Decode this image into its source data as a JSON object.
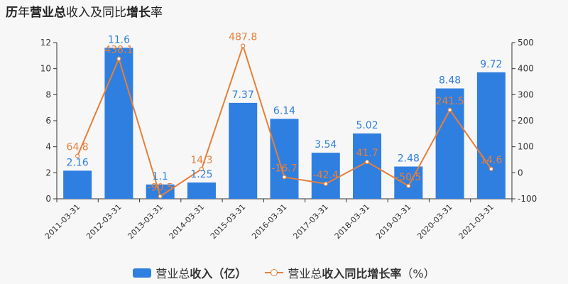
{
  "title": {
    "parts": [
      {
        "text": "历",
        "bold": true
      },
      {
        "text": "年",
        "bold": false
      },
      {
        "text": "营业总",
        "bold": true
      },
      {
        "text": "收入及同比",
        "bold": false
      },
      {
        "text": "增长",
        "bold": true
      },
      {
        "text": "率",
        "bold": false
      }
    ]
  },
  "chart_data": {
    "type": "bar+line",
    "categories": [
      "2011-03-31",
      "2012-03-31",
      "2013-03-31",
      "2014-03-31",
      "2015-03-31",
      "2016-03-31",
      "2017-03-31",
      "2018-03-31",
      "2019-03-31",
      "2020-03-31",
      "2021-03-31"
    ],
    "series": [
      {
        "name": "营业总收入（亿）",
        "type": "bar",
        "axis": "left",
        "color": "#2f7fe0",
        "label_color": "#2f7fe0",
        "values": [
          2.16,
          11.6,
          1.1,
          1.25,
          7.37,
          6.14,
          3.54,
          5.02,
          2.48,
          8.48,
          9.72
        ],
        "labels": [
          "2.16",
          "11.6",
          "1.1",
          "1.25",
          "7.37",
          "6.14",
          "3.54",
          "5.02",
          "2.48",
          "8.48",
          "9.72"
        ]
      },
      {
        "name": "营业总收入同比增长率（%）",
        "type": "line",
        "axis": "right",
        "color": "#e77f39",
        "label_color": "#e77f39",
        "values": [
          64.8,
          438.1,
          -90.5,
          14.3,
          487.8,
          -16.7,
          -42.4,
          41.7,
          -50.5,
          241.5,
          14.6
        ],
        "labels": [
          "64.8",
          "438.1",
          "-90.5",
          "14.3",
          "487.8",
          "-16.7",
          "-42.4",
          "41.7",
          "-50.5",
          "241.5",
          "14.6"
        ]
      }
    ],
    "y_left": {
      "min": 0,
      "max": 12,
      "ticks": [
        "0",
        "2",
        "4",
        "6",
        "8",
        "10",
        "12"
      ]
    },
    "y_right": {
      "min": -100,
      "max": 500,
      "ticks": [
        "-100",
        "0",
        "100",
        "200",
        "300",
        "400",
        "500"
      ]
    },
    "grid": false,
    "legend_position": "bottom"
  },
  "legend": {
    "bar_label_bold": "营业总",
    "bar_label_rest": "收入（亿）",
    "line_label_pre": "营业总",
    "line_label_bold": "收入同比增长率",
    "line_label_rest": "（%）"
  }
}
